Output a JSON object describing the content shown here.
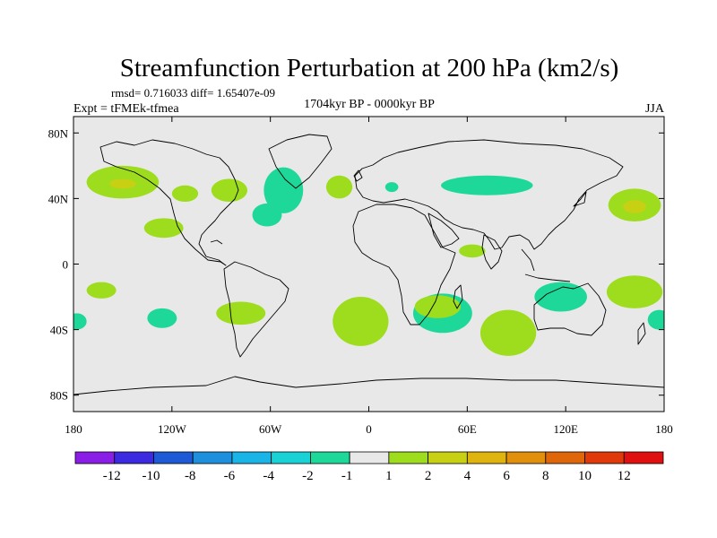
{
  "chart_data": {
    "type": "heatmap",
    "title": "Streamfunction Perturbation at 200 hPa (km2/s)",
    "stats_text": "rmsd= 0.716033 diff= 1.65407e-09",
    "expt_text": "Expt = tFMEk-tfmea",
    "period_text": "1704kyr BP - 0000kyr BP",
    "season_text": "JJA",
    "xlim": [
      -180,
      180
    ],
    "ylim": [
      -90,
      90
    ],
    "x_ticks": [
      {
        "value": -180,
        "label": "180"
      },
      {
        "value": -120,
        "label": "120W"
      },
      {
        "value": -60,
        "label": "60W"
      },
      {
        "value": 0,
        "label": "0"
      },
      {
        "value": 60,
        "label": "60E"
      },
      {
        "value": 120,
        "label": "120E"
      },
      {
        "value": 180,
        "label": "180"
      }
    ],
    "y_ticks": [
      {
        "value": 80,
        "label": "80N"
      },
      {
        "value": 40,
        "label": "40N"
      },
      {
        "value": 0,
        "label": "0"
      },
      {
        "value": -40,
        "label": "40S"
      },
      {
        "value": -80,
        "label": "80S"
      }
    ],
    "colorbar": {
      "colors": [
        "#8a1ee6",
        "#3c2ae0",
        "#1e5ad6",
        "#1e8fdc",
        "#1ab4e6",
        "#18d2d6",
        "#1ed89a",
        "#e8e8e8",
        "#9edc1e",
        "#c8d014",
        "#e0b40e",
        "#e0900c",
        "#e0660a",
        "#e03a0a",
        "#e01010"
      ],
      "labels": [
        "-12",
        "-10",
        "-8",
        "-6",
        "-4",
        "-2",
        "-1",
        "1",
        "2",
        "4",
        "6",
        "8",
        "10",
        "12"
      ]
    },
    "field_blobs": [
      {
        "lon": -150,
        "lat": 50,
        "rlon": 22,
        "rlat": 10,
        "level": 1
      },
      {
        "lon": -150,
        "lat": 49,
        "rlon": 8,
        "rlat": 3,
        "level": 2
      },
      {
        "lon": -125,
        "lat": 22,
        "rlon": 12,
        "rlat": 6,
        "level": 1
      },
      {
        "lon": -112,
        "lat": 43,
        "rlon": 8,
        "rlat": 5,
        "level": 1
      },
      {
        "lon": -85,
        "lat": 45,
        "rlon": 11,
        "rlat": 7,
        "level": 1
      },
      {
        "lon": -52,
        "lat": 45,
        "rlon": 12,
        "rlat": 14,
        "level": -1
      },
      {
        "lon": -62,
        "lat": 30,
        "rlon": 9,
        "rlat": 7,
        "level": -1
      },
      {
        "lon": -18,
        "lat": 47,
        "rlon": 8,
        "rlat": 7,
        "level": 1
      },
      {
        "lon": 14,
        "lat": 47,
        "rlon": 4,
        "rlat": 3,
        "level": -1
      },
      {
        "lon": 72,
        "lat": 48,
        "rlon": 28,
        "rlat": 6,
        "level": -1
      },
      {
        "lon": 162,
        "lat": 36,
        "rlon": 16,
        "rlat": 10,
        "level": 1
      },
      {
        "lon": 162,
        "lat": 35,
        "rlon": 7,
        "rlat": 4,
        "level": 2
      },
      {
        "lon": 63,
        "lat": 8,
        "rlon": 8,
        "rlat": 4,
        "level": 1
      },
      {
        "lon": -163,
        "lat": -16,
        "rlon": 9,
        "rlat": 5,
        "level": 1
      },
      {
        "lon": -178,
        "lat": -35,
        "rlon": 6,
        "rlat": 5,
        "level": -1
      },
      {
        "lon": -126,
        "lat": -33,
        "rlon": 9,
        "rlat": 6,
        "level": -1
      },
      {
        "lon": -78,
        "lat": -30,
        "rlon": 15,
        "rlat": 7,
        "level": 1
      },
      {
        "lon": -5,
        "lat": -35,
        "rlon": 17,
        "rlat": 15,
        "level": 1
      },
      {
        "lon": 45,
        "lat": -30,
        "rlon": 18,
        "rlat": 12,
        "level": -1
      },
      {
        "lon": 47,
        "lat": -27,
        "rlon": 5,
        "rlat": 4,
        "level": -2
      },
      {
        "lon": 42,
        "lat": -26,
        "rlon": 14,
        "rlat": 7,
        "level": 1
      },
      {
        "lon": 85,
        "lat": -42,
        "rlon": 17,
        "rlat": 14,
        "level": 1
      },
      {
        "lon": 117,
        "lat": -20,
        "rlon": 16,
        "rlat": 9,
        "level": -1
      },
      {
        "lon": 162,
        "lat": -17,
        "rlon": 17,
        "rlat": 10,
        "level": 1
      },
      {
        "lon": 177,
        "lat": -34,
        "rlon": 7,
        "rlat": 6,
        "level": -1
      }
    ]
  }
}
